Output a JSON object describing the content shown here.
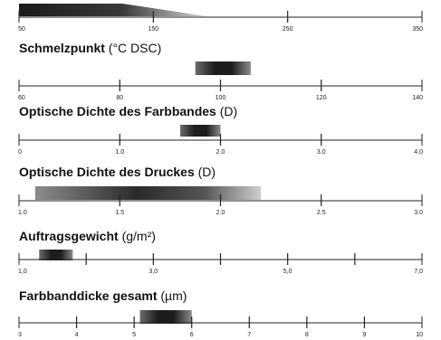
{
  "chart_data": [
    {
      "type": "range-bar",
      "title": "",
      "unit": "",
      "ticks": [
        "50",
        "150",
        "250",
        "350"
      ],
      "min": 50,
      "max": 350,
      "range": [
        50,
        190
      ],
      "shape": "taper"
    },
    {
      "type": "range-bar",
      "title": "Schmelzpunkt",
      "unit": "(°C DSC)",
      "ticks": [
        "60",
        "80",
        "100",
        "120",
        "140"
      ],
      "min": 60,
      "max": 140,
      "range": [
        95,
        106
      ]
    },
    {
      "type": "range-bar",
      "title": "Optische Dichte des Farbbandes",
      "unit": "(D)",
      "ticks": [
        "0",
        "1.0",
        "2.0",
        "3.0",
        "4.0"
      ],
      "min": 0,
      "max": 4,
      "range": [
        1.6,
        2.0
      ]
    },
    {
      "type": "range-bar",
      "title": "Optische Dichte des Druckes",
      "unit": "(D)",
      "ticks": [
        "1.0",
        "1.5",
        "2.0",
        "2.5",
        "3.0"
      ],
      "min": 1.0,
      "max": 3.0,
      "range": [
        1.08,
        2.2
      ]
    },
    {
      "type": "range-bar",
      "title": "Auftragsgewicht",
      "unit": "(g/m²)",
      "ticks": [
        "1,0",
        "",
        "3,0",
        "",
        "5,0",
        "",
        "7,0"
      ],
      "min": 1.0,
      "max": 7.0,
      "range": [
        1.3,
        1.8
      ]
    },
    {
      "type": "range-bar",
      "title": "Farbbanddicke gesamt",
      "unit": "(µm)",
      "ticks": [
        "3",
        "4",
        "5",
        "6",
        "7",
        "8",
        "9",
        "10"
      ],
      "min": 3,
      "max": 10,
      "range": [
        5.1,
        6.0
      ]
    }
  ]
}
